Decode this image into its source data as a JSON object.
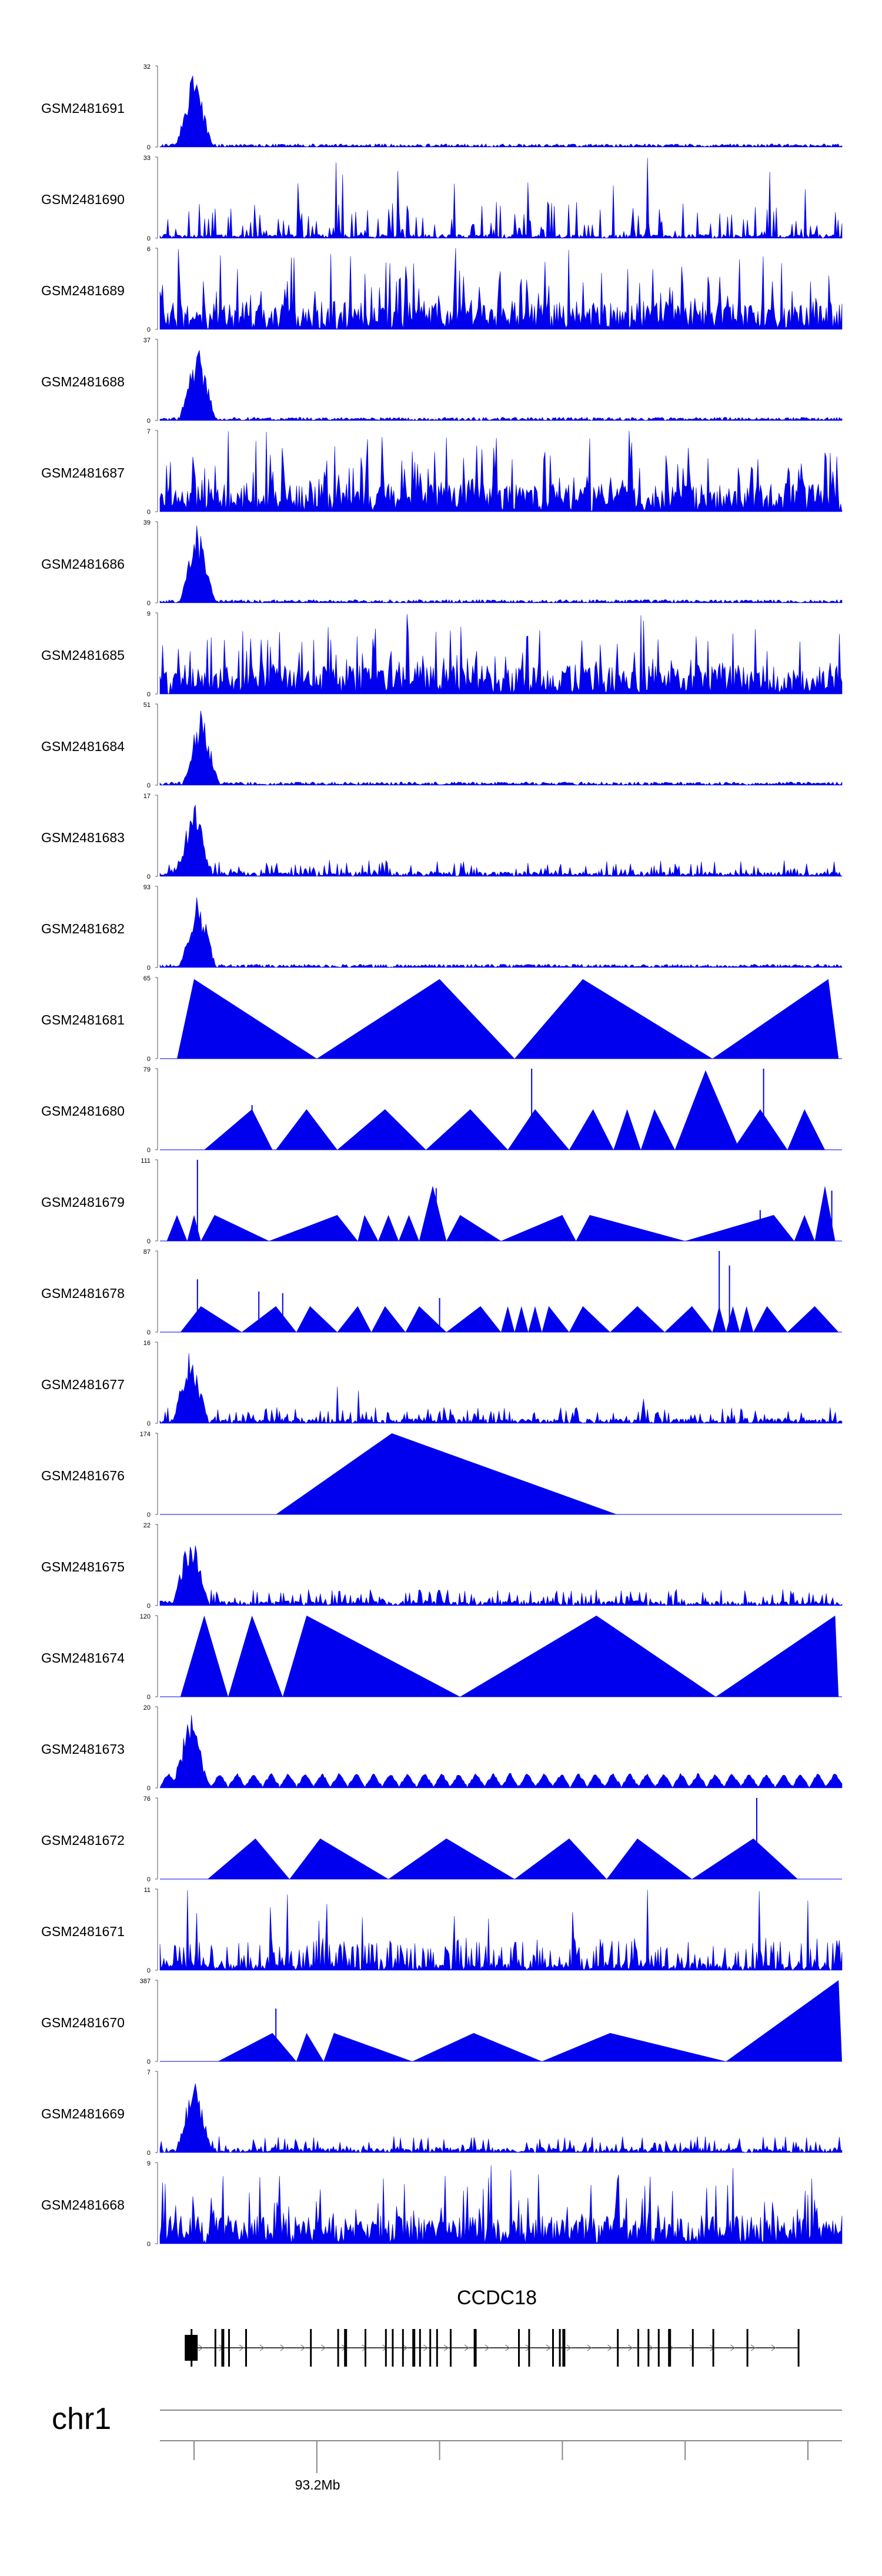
{
  "colors": {
    "signal": "#0000ee",
    "axis": "#555555",
    "gene": "#000000",
    "genome_axis": "#888888"
  },
  "chart_data": {
    "type": "area",
    "grid": false,
    "locus": {
      "chromosome": "chr1",
      "tick_label": "93.2Mb",
      "gene": "CCDC18"
    },
    "tracks": [
      {
        "label": "GSM2481691",
        "ymax": "32",
        "ymin": "0",
        "pattern": "peak",
        "peak_pos": 0.05,
        "seed": 11
      },
      {
        "label": "GSM2481690",
        "ymax": "33",
        "ymin": "0",
        "pattern": "sparse_wide",
        "seed": 12
      },
      {
        "label": "GSM2481689",
        "ymax": "6",
        "ymin": "0",
        "pattern": "dense",
        "seed": 13
      },
      {
        "label": "GSM2481688",
        "ymax": "37",
        "ymin": "0",
        "pattern": "peak",
        "peak_pos": 0.055,
        "seed": 14
      },
      {
        "label": "GSM2481687",
        "ymax": "7",
        "ymin": "0",
        "pattern": "dense",
        "seed": 15
      },
      {
        "label": "GSM2481686",
        "ymax": "39",
        "ymin": "0",
        "pattern": "peak",
        "peak_pos": 0.055,
        "seed": 16
      },
      {
        "label": "GSM2481685",
        "ymax": "9",
        "ymin": "0",
        "pattern": "dense",
        "seed": 17
      },
      {
        "label": "GSM2481684",
        "ymax": "51",
        "ymin": "0",
        "pattern": "peak",
        "peak_pos": 0.06,
        "seed": 18
      },
      {
        "label": "GSM2481683",
        "ymax": "17",
        "ymin": "0",
        "pattern": "peak_noise",
        "peak_pos": 0.05,
        "seed": 19
      },
      {
        "label": "GSM2481682",
        "ymax": "93",
        "ymin": "0",
        "pattern": "peak",
        "peak_pos": 0.055,
        "seed": 20
      },
      {
        "label": "GSM2481681",
        "ymax": "65",
        "ymin": "0",
        "pattern": "triangles",
        "triangles": [
          [
            0.025,
            0.05,
            0.23,
            0.98
          ],
          [
            0.23,
            0.41,
            0.52,
            0.98
          ],
          [
            0.52,
            0.62,
            0.81,
            0.98
          ],
          [
            0.81,
            0.98,
            0.995,
            0.98
          ]
        ]
      },
      {
        "label": "GSM2481680",
        "ymax": "79",
        "ymin": "0",
        "pattern": "triangles",
        "triangles": [
          [
            0.065,
            0.135,
            0.165,
            0.5
          ],
          [
            0.17,
            0.215,
            0.26,
            0.5
          ],
          [
            0.26,
            0.33,
            0.39,
            0.5
          ],
          [
            0.39,
            0.455,
            0.51,
            0.5
          ],
          [
            0.51,
            0.55,
            0.6,
            0.5
          ],
          [
            0.6,
            0.635,
            0.665,
            0.5
          ],
          [
            0.665,
            0.685,
            0.705,
            0.5
          ],
          [
            0.705,
            0.725,
            0.755,
            0.5
          ],
          [
            0.755,
            0.8,
            0.85,
            0.98
          ],
          [
            0.84,
            0.88,
            0.92,
            0.5
          ],
          [
            0.92,
            0.945,
            0.975,
            0.5
          ]
        ],
        "spikes": [
          [
            0.135,
            0.55
          ],
          [
            0.545,
            1.0
          ],
          [
            0.885,
            1.0
          ]
        ]
      },
      {
        "label": "GSM2481679",
        "ymax": "111",
        "ymin": "0",
        "pattern": "triangles",
        "triangles": [
          [
            0.01,
            0.025,
            0.04,
            0.32
          ],
          [
            0.04,
            0.05,
            0.06,
            0.32
          ],
          [
            0.06,
            0.08,
            0.16,
            0.32
          ],
          [
            0.16,
            0.26,
            0.29,
            0.32
          ],
          [
            0.29,
            0.3,
            0.32,
            0.32
          ],
          [
            0.32,
            0.335,
            0.35,
            0.32
          ],
          [
            0.35,
            0.365,
            0.38,
            0.32
          ],
          [
            0.38,
            0.4,
            0.42,
            0.68
          ],
          [
            0.42,
            0.44,
            0.5,
            0.32
          ],
          [
            0.5,
            0.59,
            0.61,
            0.32
          ],
          [
            0.61,
            0.63,
            0.77,
            0.32
          ],
          [
            0.77,
            0.9,
            0.93,
            0.32
          ],
          [
            0.93,
            0.945,
            0.96,
            0.32
          ],
          [
            0.96,
            0.975,
            0.99,
            0.68
          ]
        ],
        "spikes": [
          [
            0.055,
            1.0
          ],
          [
            0.405,
            0.65
          ],
          [
            0.88,
            0.38
          ],
          [
            0.985,
            0.62
          ]
        ]
      },
      {
        "label": "GSM2481678",
        "ymax": "87",
        "ymin": "0",
        "pattern": "triangles",
        "triangles": [
          [
            0.03,
            0.06,
            0.12,
            0.32
          ],
          [
            0.12,
            0.17,
            0.2,
            0.32
          ],
          [
            0.2,
            0.22,
            0.26,
            0.32
          ],
          [
            0.26,
            0.29,
            0.31,
            0.32
          ],
          [
            0.31,
            0.33,
            0.36,
            0.32
          ],
          [
            0.36,
            0.38,
            0.42,
            0.32
          ],
          [
            0.42,
            0.47,
            0.5,
            0.32
          ],
          [
            0.5,
            0.51,
            0.52,
            0.32
          ],
          [
            0.52,
            0.53,
            0.54,
            0.32
          ],
          [
            0.54,
            0.55,
            0.56,
            0.32
          ],
          [
            0.56,
            0.57,
            0.6,
            0.32
          ],
          [
            0.6,
            0.62,
            0.66,
            0.32
          ],
          [
            0.66,
            0.7,
            0.74,
            0.32
          ],
          [
            0.74,
            0.78,
            0.81,
            0.32
          ],
          [
            0.81,
            0.82,
            0.83,
            0.32
          ],
          [
            0.83,
            0.84,
            0.85,
            0.32
          ],
          [
            0.85,
            0.86,
            0.87,
            0.32
          ],
          [
            0.87,
            0.89,
            0.92,
            0.32
          ],
          [
            0.92,
            0.96,
            0.995,
            0.32
          ]
        ],
        "spikes": [
          [
            0.055,
            0.65
          ],
          [
            0.145,
            0.5
          ],
          [
            0.18,
            0.48
          ],
          [
            0.41,
            0.42
          ],
          [
            0.82,
            1.0
          ],
          [
            0.835,
            0.82
          ]
        ]
      },
      {
        "label": "GSM2481677",
        "ymax": "16",
        "ymin": "0",
        "pattern": "peak_noise",
        "peak_pos": 0.045,
        "seed": 21,
        "extra": [
          [
            0.26,
            0.45
          ],
          [
            0.29,
            0.4
          ],
          [
            0.71,
            0.3
          ]
        ]
      },
      {
        "label": "GSM2481676",
        "ymax": "174",
        "ymin": "0",
        "pattern": "triangles",
        "triangles": [
          [
            0.17,
            0.34,
            0.67,
            1.0
          ]
        ]
      },
      {
        "label": "GSM2481675",
        "ymax": "22",
        "ymin": "0",
        "pattern": "peak_noise",
        "peak_pos": 0.045,
        "seed": 22
      },
      {
        "label": "GSM2481674",
        "ymax": "120",
        "ymin": "0",
        "pattern": "triangles",
        "triangles": [
          [
            0.03,
            0.065,
            0.1,
            1.0
          ],
          [
            0.1,
            0.135,
            0.18,
            1.0
          ],
          [
            0.18,
            0.215,
            0.44,
            1.0
          ],
          [
            0.44,
            0.64,
            0.815,
            1.0
          ],
          [
            0.815,
            0.99,
            0.995,
            1.0
          ]
        ]
      },
      {
        "label": "GSM2481673",
        "ymax": "20",
        "ymin": "0",
        "pattern": "mini_triangles",
        "peak_pos": 0.045,
        "seed": 23
      },
      {
        "label": "GSM2481672",
        "ymax": "76",
        "ymin": "0",
        "pattern": "triangles",
        "triangles": [
          [
            0.07,
            0.14,
            0.19,
            0.5
          ],
          [
            0.19,
            0.235,
            0.335,
            0.5
          ],
          [
            0.335,
            0.42,
            0.52,
            0.5
          ],
          [
            0.52,
            0.6,
            0.655,
            0.5
          ],
          [
            0.655,
            0.7,
            0.78,
            0.5
          ],
          [
            0.78,
            0.87,
            0.935,
            0.5
          ]
        ],
        "spikes": [
          [
            0.875,
            1.0
          ]
        ]
      },
      {
        "label": "GSM2481671",
        "ymax": "11",
        "ymin": "0",
        "pattern": "sparse_dense",
        "seed": 24
      },
      {
        "label": "GSM2481670",
        "ymax": "387",
        "ymin": "0",
        "pattern": "triangles",
        "triangles": [
          [
            0.085,
            0.165,
            0.2,
            0.35
          ],
          [
            0.2,
            0.215,
            0.24,
            0.35
          ],
          [
            0.24,
            0.255,
            0.37,
            0.35
          ],
          [
            0.37,
            0.46,
            0.56,
            0.35
          ],
          [
            0.56,
            0.66,
            0.83,
            0.35
          ],
          [
            0.83,
            0.995,
            1.0,
            1.0
          ]
        ],
        "spikes": [
          [
            0.17,
            0.65
          ]
        ]
      },
      {
        "label": "GSM2481669",
        "ymax": "7",
        "ymin": "0",
        "pattern": "peak_noise",
        "peak_pos": 0.05,
        "seed": 25
      },
      {
        "label": "GSM2481668",
        "ymax": "9",
        "ymin": "0",
        "pattern": "dense",
        "seed": 26
      }
    ],
    "gene_model": {
      "exons": [
        0.045,
        0.08,
        0.09,
        0.1,
        0.125,
        0.22,
        0.26,
        0.27,
        0.3,
        0.33,
        0.34,
        0.355,
        0.37,
        0.38,
        0.395,
        0.405,
        0.425,
        0.46,
        0.525,
        0.54,
        0.575,
        0.585,
        0.59,
        0.67,
        0.7,
        0.715,
        0.73,
        0.745,
        0.78,
        0.81,
        0.86,
        0.935
      ]
    }
  }
}
